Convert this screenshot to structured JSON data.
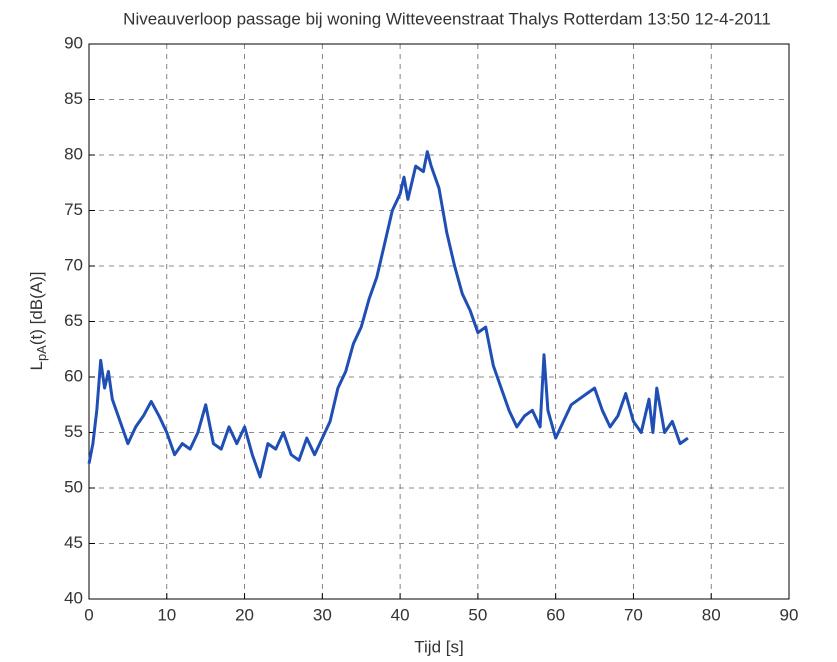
{
  "chart_data": {
    "type": "line",
    "title": "Niveauverloop passage bij woning Witteveenstraat Thalys Rotterdam 13:50 12-4-2011",
    "xlabel": "Tijd [s]",
    "ylabel": {
      "main": "L",
      "sub": "pA",
      "rest": "(t) [dB(A)]"
    },
    "xlim": [
      0,
      90
    ],
    "xticks": [
      0,
      10,
      20,
      30,
      40,
      50,
      60,
      70,
      80,
      90
    ],
    "ylim": [
      40,
      90
    ],
    "yticks": [
      40,
      45,
      50,
      55,
      60,
      65,
      70,
      75,
      80,
      85,
      90
    ],
    "grid": true,
    "series": [
      {
        "color": "#1f4fb4",
        "x": [
          0,
          0.5,
          1,
          1.5,
          2,
          2.5,
          3,
          4,
          5,
          6,
          7,
          8,
          9,
          10,
          11,
          12,
          13,
          14,
          15,
          16,
          17,
          18,
          19,
          20,
          21,
          22,
          23,
          24,
          25,
          26,
          27,
          28,
          29,
          30,
          31,
          32,
          33,
          34,
          35,
          36,
          37,
          38,
          39,
          40,
          40.5,
          41,
          42,
          43,
          43.5,
          44,
          45,
          46,
          47,
          48,
          49,
          50,
          51,
          52,
          53,
          54,
          55,
          56,
          57,
          58,
          58.5,
          59,
          60,
          61,
          62,
          63,
          64,
          65,
          66,
          67,
          68,
          69,
          70,
          71,
          72,
          72.5,
          73,
          74,
          75,
          76,
          77
        ],
        "values": [
          52.2,
          54,
          57,
          61.5,
          59,
          60.5,
          58,
          56,
          54,
          55.5,
          56.5,
          57.8,
          56.5,
          55,
          53,
          54,
          53.5,
          55,
          57.5,
          54,
          53.5,
          55.5,
          54,
          55.5,
          53,
          51,
          54,
          53.5,
          55,
          53,
          52.5,
          54.5,
          53,
          54.5,
          56,
          59,
          60.5,
          63,
          64.5,
          67,
          69,
          72,
          75,
          76.5,
          78,
          76,
          79,
          78.5,
          80.3,
          79,
          77,
          73,
          70,
          67.5,
          66,
          64,
          64.5,
          61,
          59,
          57,
          55.5,
          56.5,
          57,
          55.5,
          62,
          57,
          54.5,
          56,
          57.5,
          58,
          58.5,
          59,
          57,
          55.5,
          56.5,
          58.5,
          56,
          55,
          58,
          55,
          59,
          55,
          56,
          54,
          54.5
        ]
      }
    ]
  }
}
